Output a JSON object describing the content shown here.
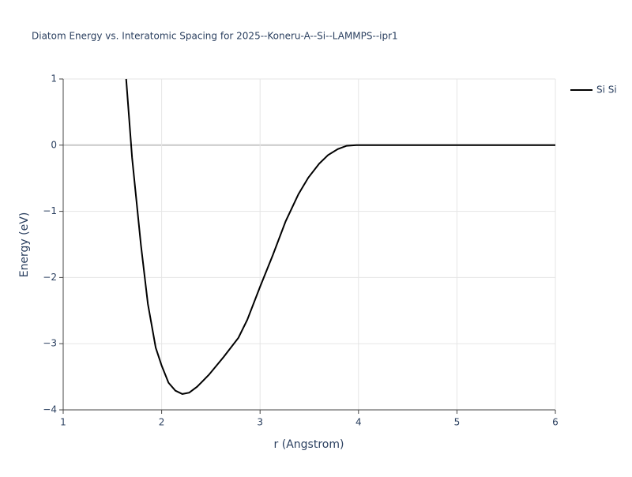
{
  "chart_data": {
    "type": "line",
    "title": "Diatom Energy vs. Interatomic Spacing for 2025--Koneru-A--Si--LAMMPS--ipr1",
    "x_label": "r (Angstrom)",
    "y_label": "Energy (eV)",
    "x": [
      1.64,
      1.7,
      1.79,
      1.86,
      1.94,
      2.0,
      2.07,
      2.14,
      2.21,
      2.28,
      2.36,
      2.48,
      2.63,
      2.78,
      2.87,
      3.0,
      3.13,
      3.26,
      3.39,
      3.49,
      3.6,
      3.69,
      3.79,
      3.88,
      3.98,
      4.5,
      5.0,
      5.5,
      6.0
    ],
    "series": [
      {
        "name": "Si Si",
        "color": "#000000",
        "values": [
          1,
          -0.19,
          -1.51,
          -2.4,
          -3.06,
          -3.33,
          -3.59,
          -3.71,
          -3.76,
          -3.74,
          -3.65,
          -3.47,
          -3.2,
          -2.91,
          -2.64,
          -2.14,
          -1.66,
          -1.15,
          -0.74,
          -0.49,
          -0.28,
          -0.15,
          -0.06,
          -0.01,
          0,
          0,
          0,
          0,
          0
        ]
      }
    ],
    "xlim": [
      1,
      6
    ],
    "xticks": [
      1,
      2,
      3,
      4,
      5,
      6
    ],
    "ylim": [
      -4,
      1
    ],
    "yticks": [
      {
        "value": -4,
        "label": "−4"
      },
      {
        "value": -3,
        "label": "−3"
      },
      {
        "value": -2,
        "label": "−2"
      },
      {
        "value": -1,
        "label": "−1"
      },
      0,
      1
    ],
    "grid": true,
    "legend": "right"
  }
}
